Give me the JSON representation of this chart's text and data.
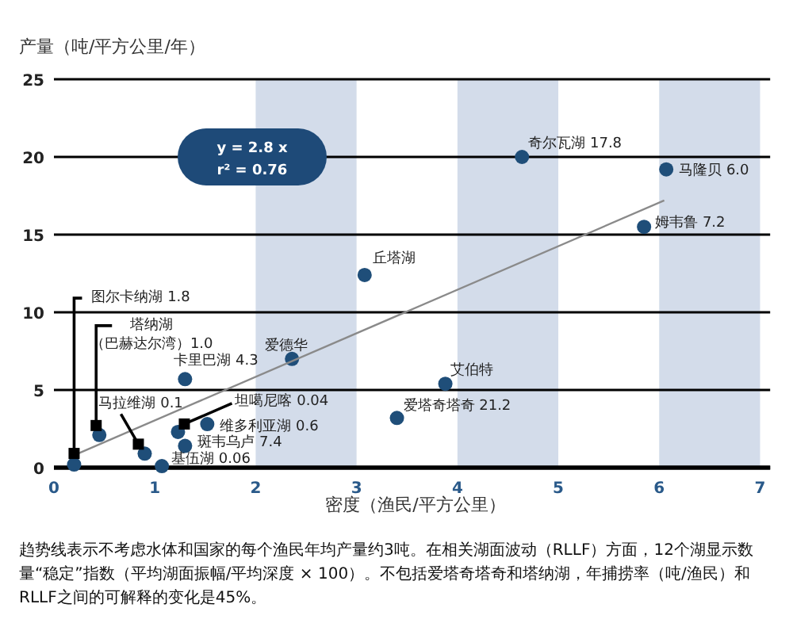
{
  "chart_data": {
    "type": "scatter",
    "ylabel": "产量（吨/平方公里/年）",
    "xlabel": "密度（渔民/平方公里）",
    "xlim": [
      0,
      7.1
    ],
    "xticks": [
      0,
      1,
      2,
      3,
      4,
      5,
      6,
      7
    ],
    "ylim": [
      0,
      25
    ],
    "yticks": [
      0,
      5,
      10,
      15,
      20,
      25
    ],
    "grid": "y",
    "series": [
      {
        "color": "#1f4e79",
        "marker": "circle",
        "x": [
          0.2,
          0.45,
          0.9,
          1.23,
          1.52,
          1.3,
          1.07,
          1.3,
          2.36,
          3.08,
          3.4,
          3.88,
          4.64,
          6.07,
          5.85
        ],
        "values": [
          0.2,
          2.1,
          0.9,
          2.3,
          2.8,
          1.4,
          0.1,
          5.7,
          7.0,
          12.4,
          3.2,
          5.4,
          20.0,
          19.2,
          15.5
        ]
      },
      {
        "type": "line",
        "color": "#8a8a8a",
        "line_style": "solid",
        "x": [
          0.2,
          6.05
        ],
        "values": [
          0.8,
          17.2
        ]
      }
    ],
    "bands": [
      {
        "axis": "x",
        "from": 2,
        "to": 3,
        "color": "#d3dcea"
      },
      {
        "axis": "x",
        "from": 4,
        "to": 5,
        "color": "#d3dcea"
      },
      {
        "axis": "x",
        "from": 6,
        "to": 7,
        "color": "#d3dcea"
      }
    ],
    "annotations": [
      {
        "text": "图尔卡纳湖 1.8",
        "x": 0.2,
        "y": 0.2
      },
      {
        "text": "塔纳湖（巴赫达尔湾）1.0",
        "x": 0.45,
        "y": 2.1
      },
      {
        "text": "马拉维湖 0.1",
        "x": 0.9,
        "y": 0.9
      },
      {
        "text": "坦噶尼喀 0.04",
        "x": 1.23,
        "y": 2.3
      },
      {
        "text": "维多利亚湖 0.6",
        "x": 1.52,
        "y": 2.8
      },
      {
        "text": "斑韦乌卢 7.4",
        "x": 1.3,
        "y": 1.4
      },
      {
        "text": "基伍湖 0.06",
        "x": 1.07,
        "y": 0.1
      },
      {
        "text": "卡里巴湖 4.3",
        "x": 1.3,
        "y": 5.7
      },
      {
        "text": "爱德华",
        "x": 2.36,
        "y": 7.0
      },
      {
        "text": "丘塔湖",
        "x": 3.08,
        "y": 12.4
      },
      {
        "text": "爱塔奇塔奇 21.2",
        "x": 3.4,
        "y": 3.2
      },
      {
        "text": "艾伯特",
        "x": 3.88,
        "y": 5.4
      },
      {
        "text": "奇尔瓦湖 17.8",
        "x": 4.64,
        "y": 20.0
      },
      {
        "text": "马隆贝 6.0",
        "x": 6.07,
        "y": 19.2
      },
      {
        "text": "姆韦鲁 7.2",
        "x": 5.85,
        "y": 15.5
      },
      "y = 2.8 x\nr² = 0.76",
      "趋势线表示不考虑水体和国家的每个渔民年均产量约3吨。在相关湖面波动（RLLF）方面，12个湖显示数量“稳定”指数（平均湖面振幅/平均深度 × 100）。不包括爱塔奇塔奇和塔纳湖，年捕捞率（吨/渔民）和RLLF之间的可解释的变化是45%。"
    ]
  }
}
